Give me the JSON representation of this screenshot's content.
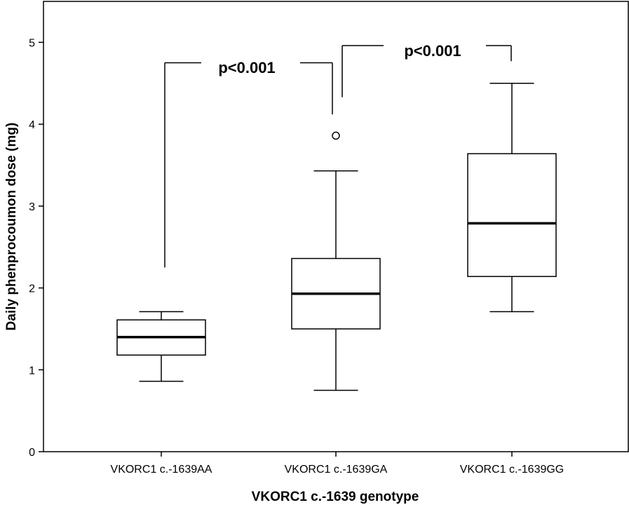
{
  "chart_data": {
    "type": "box",
    "xlabel": "VKORC1 c.-1639 genotype",
    "ylabel": "Daily phenprocoumon dose (mg)",
    "ylim": [
      0,
      5.5
    ],
    "yticks": [
      0,
      1,
      2,
      3,
      4,
      5
    ],
    "grid": false,
    "categories": [
      "VKORC1 c.-1639AA",
      "VKORC1 c.-1639GA",
      "VKORC1 c.-1639GG"
    ],
    "boxes": [
      {
        "category": "VKORC1 c.-1639AA",
        "whisker_low": 0.86,
        "q1": 1.18,
        "median": 1.4,
        "q3": 1.61,
        "whisker_high": 1.71,
        "outliers": []
      },
      {
        "category": "VKORC1 c.-1639GA",
        "whisker_low": 0.75,
        "q1": 1.5,
        "median": 1.93,
        "q3": 2.36,
        "whisker_high": 3.43,
        "outliers": [
          3.86
        ]
      },
      {
        "category": "VKORC1 c.-1639GG",
        "whisker_low": 1.71,
        "q1": 2.14,
        "median": 2.79,
        "q3": 3.64,
        "whisker_high": 4.5,
        "outliers": []
      }
    ],
    "annotations": [
      {
        "text": "p<0.001",
        "from": "VKORC1 c.-1639AA",
        "to": "VKORC1 c.-1639GA"
      },
      {
        "text": "p<0.001",
        "from": "VKORC1 c.-1639GA",
        "to": "VKORC1 c.-1639GG"
      }
    ]
  }
}
